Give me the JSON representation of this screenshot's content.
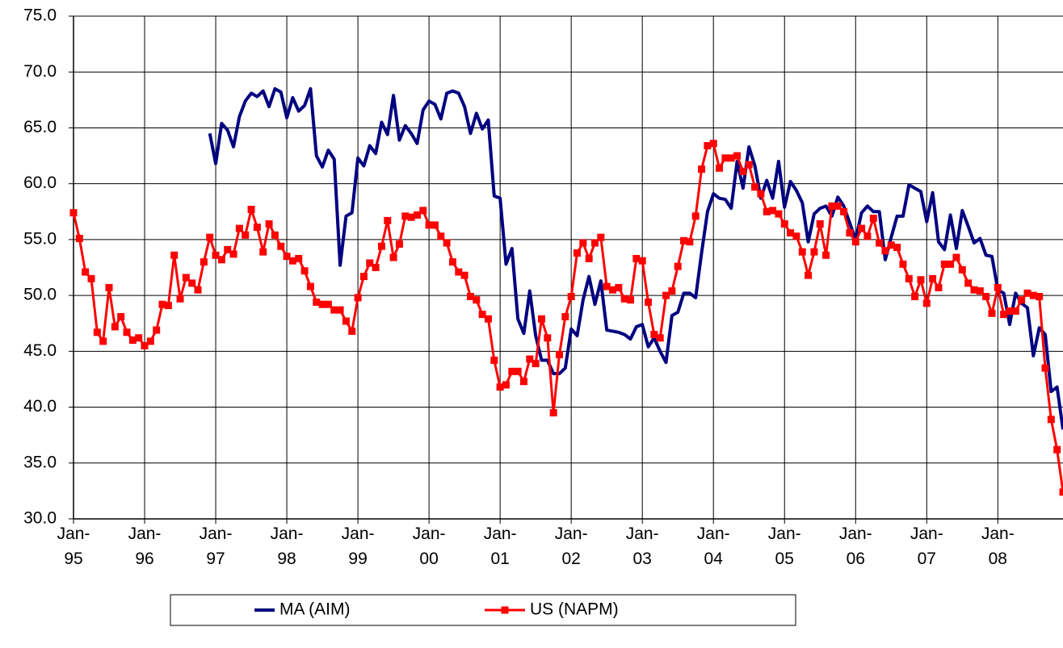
{
  "chart_data": {
    "type": "line",
    "categories": [
      "Jan-95",
      null,
      null,
      null,
      null,
      null,
      null,
      null,
      null,
      null,
      null,
      null,
      "Jan-96",
      null,
      null,
      null,
      null,
      null,
      null,
      null,
      null,
      null,
      null,
      null,
      "Jan-97",
      null,
      null,
      null,
      null,
      null,
      null,
      null,
      null,
      null,
      null,
      null,
      "Jan-98",
      null,
      null,
      null,
      null,
      null,
      null,
      null,
      null,
      null,
      null,
      null,
      "Jan-99",
      null,
      null,
      null,
      null,
      null,
      null,
      null,
      null,
      null,
      null,
      null,
      "Jan-00",
      null,
      null,
      null,
      null,
      null,
      null,
      null,
      null,
      null,
      null,
      null,
      "Jan-01",
      null,
      null,
      null,
      null,
      null,
      null,
      null,
      null,
      null,
      null,
      null,
      "Jan-02",
      null,
      null,
      null,
      null,
      null,
      null,
      null,
      null,
      null,
      null,
      null,
      "Jan-03",
      null,
      null,
      null,
      null,
      null,
      null,
      null,
      null,
      null,
      null,
      null,
      "Jan-04",
      null,
      null,
      null,
      null,
      null,
      null,
      null,
      null,
      null,
      null,
      null,
      "Jan-05",
      null,
      null,
      null,
      null,
      null,
      null,
      null,
      null,
      null,
      null,
      null,
      "Jan-06",
      null,
      null,
      null,
      null,
      null,
      null,
      null,
      null,
      null,
      null,
      null,
      "Jan-07",
      null,
      null,
      null,
      null,
      null,
      null,
      null,
      null,
      null,
      null,
      null,
      "Jan-08",
      null,
      null,
      null,
      null,
      null,
      null,
      null,
      null,
      null,
      null,
      null
    ],
    "series": [
      {
        "name": "MA (AIM)",
        "color": "#000080",
        "marker": false,
        "values": [
          null,
          null,
          null,
          null,
          null,
          null,
          null,
          null,
          null,
          null,
          null,
          null,
          null,
          null,
          null,
          null,
          null,
          null,
          null,
          null,
          null,
          null,
          null,
          64.5,
          61.8,
          65.4,
          64.8,
          63.3,
          66.0,
          67.4,
          68.1,
          67.8,
          68.3,
          66.9,
          68.5,
          68.2,
          65.9,
          67.7,
          66.5,
          67.0,
          68.5,
          62.5,
          61.5,
          63.0,
          62.2,
          52.7,
          57.1,
          57.4,
          62.3,
          61.6,
          63.4,
          62.7,
          65.5,
          64.4,
          67.9,
          63.9,
          65.2,
          64.5,
          63.6,
          66.6,
          67.4,
          67.1,
          65.8,
          68.1,
          68.3,
          68.1,
          66.9,
          64.5,
          66.3,
          64.9,
          65.7,
          58.9,
          58.7,
          52.8,
          54.2,
          47.9,
          46.6,
          50.4,
          46.4,
          44.2,
          44.2,
          43.0,
          43.0,
          43.5,
          47.0,
          46.4,
          49.6,
          51.7,
          49.2,
          51.3,
          46.9,
          46.8,
          46.7,
          46.5,
          46.1,
          47.2,
          47.4,
          45.4,
          46.2,
          45.0,
          44.0,
          48.2,
          48.5,
          50.2,
          50.2,
          49.8,
          53.8,
          57.5,
          59.1,
          58.7,
          58.6,
          57.8,
          62.0,
          59.6,
          63.3,
          61.6,
          58.7,
          60.3,
          58.7,
          62.0,
          57.9,
          60.2,
          59.4,
          58.3,
          54.8,
          57.3,
          57.8,
          58.0,
          57.1,
          58.8,
          58.0,
          56.5,
          55.0,
          57.4,
          58.0,
          57.5,
          57.5,
          53.2,
          55.2,
          57.1,
          57.1,
          59.9,
          59.6,
          59.3,
          56.6,
          59.2,
          54.8,
          54.1,
          57.2,
          54.2,
          57.6,
          56.2,
          54.7,
          55.1,
          53.6,
          53.5,
          50.5,
          50.2,
          47.4,
          50.2,
          49.3,
          48.9,
          44.6,
          47.1,
          46.5,
          41.4,
          41.8,
          38.0
        ]
      },
      {
        "name": "US (NAPM)",
        "color": "#ff0000",
        "marker": true,
        "values": [
          57.4,
          55.1,
          52.1,
          51.5,
          46.7,
          45.9,
          50.7,
          47.2,
          48.1,
          46.7,
          46.0,
          46.2,
          45.5,
          45.9,
          46.9,
          49.2,
          49.1,
          53.6,
          49.7,
          51.6,
          51.1,
          50.5,
          53.0,
          55.2,
          53.6,
          53.2,
          54.1,
          53.7,
          56.0,
          55.4,
          57.7,
          56.1,
          53.9,
          56.4,
          55.4,
          54.4,
          53.5,
          53.1,
          53.3,
          52.2,
          50.8,
          49.4,
          49.2,
          49.2,
          48.7,
          48.7,
          47.7,
          46.8,
          49.8,
          51.7,
          52.9,
          52.5,
          54.4,
          56.7,
          53.4,
          54.6,
          57.1,
          57.0,
          57.2,
          57.6,
          56.3,
          56.3,
          55.3,
          54.7,
          53.0,
          52.1,
          51.8,
          49.9,
          49.6,
          48.3,
          47.9,
          44.2,
          41.8,
          42.0,
          43.2,
          43.2,
          42.3,
          44.3,
          43.9,
          47.9,
          46.2,
          39.5,
          44.7,
          48.1,
          49.9,
          53.8,
          54.7,
          53.3,
          54.7,
          55.2,
          50.8,
          50.5,
          50.7,
          49.7,
          49.6,
          53.3,
          53.1,
          49.4,
          46.5,
          46.2,
          50.0,
          50.4,
          52.6,
          54.9,
          54.8,
          57.1,
          61.3,
          63.4,
          63.6,
          61.4,
          62.3,
          62.3,
          62.5,
          61.1,
          61.7,
          59.7,
          59.1,
          57.5,
          57.6,
          57.3,
          56.4,
          55.6,
          55.3,
          53.9,
          51.8,
          53.9,
          56.4,
          53.6,
          58.0,
          58.0,
          57.5,
          55.6,
          54.8,
          56.0,
          55.3,
          56.9,
          54.7,
          54.0,
          54.5,
          54.3,
          52.8,
          51.5,
          49.9,
          51.4,
          49.3,
          51.5,
          50.7,
          52.8,
          52.8,
          53.4,
          52.3,
          51.1,
          50.5,
          50.4,
          49.9,
          48.4,
          50.7,
          48.3,
          48.6,
          48.6,
          49.6,
          50.2,
          50.0,
          49.9,
          43.5,
          38.9,
          36.2,
          32.4
        ]
      }
    ],
    "ylim": [
      30,
      75
    ],
    "yticks": [
      {
        "value": 30,
        "label": "30.0"
      },
      {
        "value": 35,
        "label": "35.0"
      },
      {
        "value": 40,
        "label": "40.0"
      },
      {
        "value": 45,
        "label": "45.0"
      },
      {
        "value": 50,
        "label": "50.0"
      },
      {
        "value": 55,
        "label": "55.0"
      },
      {
        "value": 60,
        "label": "60.0"
      },
      {
        "value": 65,
        "label": "65.0"
      },
      {
        "value": 70,
        "label": "70.0"
      },
      {
        "value": 75,
        "label": "75.0"
      }
    ],
    "grid": true,
    "legend": "bottom"
  }
}
